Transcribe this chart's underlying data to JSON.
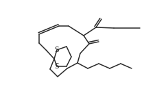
{
  "bg_color": "#ffffff",
  "line_color": "#2a2a2a",
  "lw": 1.1,
  "S_fontsize": 7.5,
  "fig_width": 2.45,
  "fig_height": 1.52,
  "dpi": 100,
  "xlim": [
    0,
    245
  ],
  "ylim": [
    0,
    152
  ]
}
